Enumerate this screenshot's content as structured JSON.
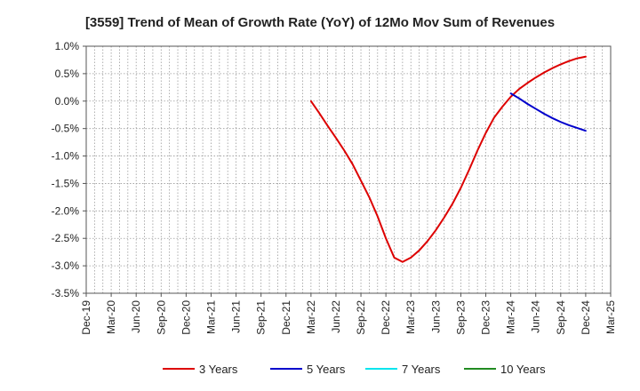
{
  "chart_data": {
    "type": "line",
    "title": "[3559]  Trend of Mean of Growth Rate (YoY) of 12Mo Mov Sum of Revenues",
    "xlabel": "",
    "ylabel": "",
    "ylim": [
      -3.5,
      1.0
    ],
    "y_ticks": [
      1.0,
      0.5,
      0.0,
      -0.5,
      -1.0,
      -1.5,
      -2.0,
      -2.5,
      -3.0,
      -3.5
    ],
    "y_tick_labels": [
      "1.0%",
      "0.5%",
      "0.0%",
      "-0.5%",
      "-1.0%",
      "-1.5%",
      "-2.0%",
      "-2.5%",
      "-3.0%",
      "-3.5%"
    ],
    "x_ticks": [
      "Dec-19",
      "Mar-20",
      "Jun-20",
      "Sep-20",
      "Dec-20",
      "Mar-21",
      "Jun-21",
      "Sep-21",
      "Dec-21",
      "Mar-22",
      "Jun-22",
      "Sep-22",
      "Dec-22",
      "Mar-23",
      "Jun-23",
      "Sep-23",
      "Dec-23",
      "Mar-24",
      "Jun-24",
      "Sep-24",
      "Dec-24",
      "Mar-25"
    ],
    "x_range_months": [
      0,
      63
    ],
    "grid": true,
    "legend_position": "bottom",
    "series": [
      {
        "name": "3 Years",
        "color": "#dd0000",
        "x_months": [
          27,
          28,
          29,
          30,
          31,
          32,
          33,
          34,
          35,
          36,
          37,
          38,
          39,
          40,
          41,
          42,
          43,
          44,
          45,
          46,
          47,
          48,
          49,
          50,
          51,
          52,
          53,
          54,
          55,
          56,
          57,
          58,
          59,
          60
        ],
        "values": [
          0.0,
          -0.22,
          -0.45,
          -0.67,
          -0.9,
          -1.15,
          -1.45,
          -1.75,
          -2.1,
          -2.5,
          -2.85,
          -2.93,
          -2.85,
          -2.72,
          -2.55,
          -2.35,
          -2.12,
          -1.87,
          -1.58,
          -1.25,
          -0.9,
          -0.58,
          -0.3,
          -0.1,
          0.08,
          0.22,
          0.33,
          0.43,
          0.52,
          0.6,
          0.67,
          0.73,
          0.78,
          0.81
        ]
      },
      {
        "name": "5 Years",
        "color": "#0000cc",
        "x_months": [
          51,
          52,
          53,
          54,
          55,
          56,
          57,
          58,
          59,
          60
        ],
        "values": [
          0.14,
          0.05,
          -0.05,
          -0.14,
          -0.23,
          -0.31,
          -0.38,
          -0.44,
          -0.49,
          -0.54
        ]
      },
      {
        "name": "7 Years",
        "color": "#00e5ee",
        "x_months": [],
        "values": []
      },
      {
        "name": "10 Years",
        "color": "#228b22",
        "x_months": [],
        "values": []
      }
    ]
  }
}
